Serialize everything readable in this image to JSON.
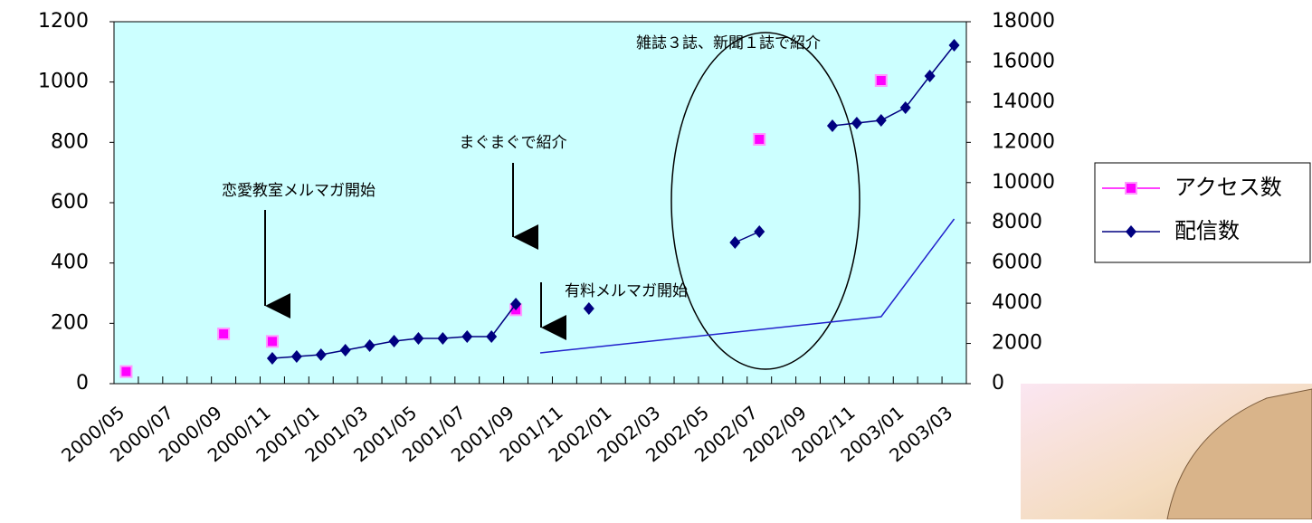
{
  "chart_data": {
    "type": "line",
    "categories": [
      "2000/05",
      null,
      "2000/07",
      null,
      "2000/09",
      null,
      "2000/11",
      null,
      "2001/01",
      null,
      "2001/03",
      null,
      "2001/05",
      null,
      "2001/07",
      null,
      "2001/09",
      null,
      "2001/11",
      null,
      "2002/01",
      null,
      "2002/03",
      null,
      "2002/05",
      null,
      "2002/07",
      null,
      "2002/09",
      null,
      "2002/11",
      null,
      "2003/01",
      null,
      "2003/03"
    ],
    "ylim": [
      0,
      1200
    ],
    "yticks": [
      0,
      200,
      400,
      600,
      800,
      1000,
      1200
    ],
    "y2lim": [
      0,
      18000
    ],
    "y2ticks": [
      0,
      2000,
      4000,
      6000,
      8000,
      10000,
      12000,
      14000,
      16000,
      18000
    ],
    "series": [
      {
        "name": "アクセス数",
        "color": "#ff00ff",
        "marker": "square",
        "axis": "y",
        "values": [
          40,
          null,
          null,
          null,
          165,
          null,
          140,
          null,
          null,
          null,
          null,
          null,
          null,
          null,
          null,
          null,
          245,
          null,
          null,
          null,
          null,
          null,
          null,
          null,
          null,
          null,
          810,
          null,
          null,
          null,
          null,
          1005,
          null,
          null,
          null
        ]
      },
      {
        "name": "配信数",
        "color": "#000080",
        "marker": "diamond",
        "axis": "y2",
        "values": [
          null,
          null,
          null,
          null,
          null,
          null,
          1260,
          1350,
          1440,
          1665,
          1890,
          2115,
          2250,
          2250,
          2340,
          2340,
          3960,
          null,
          null,
          3735,
          null,
          null,
          null,
          null,
          null,
          7020,
          7560,
          null,
          null,
          12825,
          12960,
          13095,
          13725,
          15300,
          16830
        ]
      },
      {
        "color": "#2222cc",
        "marker": "none",
        "axis": "y2",
        "connect_gaps": true,
        "values": [
          null,
          null,
          null,
          null,
          null,
          null,
          null,
          null,
          null,
          null,
          null,
          null,
          null,
          null,
          null,
          null,
          null,
          1530,
          null,
          null,
          null,
          null,
          null,
          null,
          null,
          null,
          null,
          null,
          null,
          null,
          null,
          3330,
          null,
          null,
          8190
        ]
      }
    ],
    "annotations": [
      "恋愛教室メルマガ開始",
      "まぐまぐで紹介",
      "有料メルマガ開始",
      "雑誌３誌、新聞１誌で紹介"
    ],
    "plot_background": "#ccffff",
    "legend": "right"
  }
}
